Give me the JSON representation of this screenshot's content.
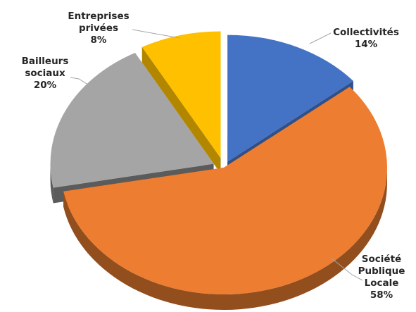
{
  "chart_data": {
    "type": "pie",
    "style": "3d-exploded",
    "categories": [
      "Collectivités",
      "Société Publique Locale",
      "Bailleurs sociaux",
      "Entreprises privées"
    ],
    "values": [
      14,
      58,
      20,
      8
    ],
    "unit": "%",
    "colors": [
      "#4472c4",
      "#ed7d31",
      "#a5a5a5",
      "#ffc000"
    ],
    "data_labels": [
      {
        "name_lines": [
          "Collectivités"
        ],
        "value": "14%"
      },
      {
        "name_lines": [
          "Société",
          "Publique",
          "Locale"
        ],
        "value": "58%"
      },
      {
        "name_lines": [
          "Bailleurs",
          "sociaux"
        ],
        "value": "20%"
      },
      {
        "name_lines": [
          "Entreprises",
          "privées"
        ],
        "value": "8%"
      }
    ],
    "legend": "none"
  }
}
